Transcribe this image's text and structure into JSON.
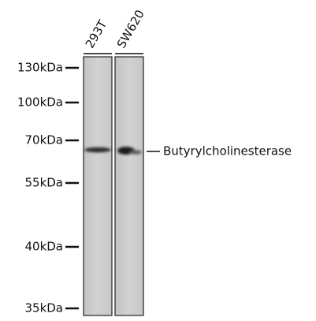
{
  "lanes": [
    "293T",
    "SW620"
  ],
  "markers": [
    "130kDa",
    "100kDa",
    "70kDa",
    "55kDa",
    "40kDa",
    "35kDa"
  ],
  "band_label": "Butyrylcholinesterase"
}
